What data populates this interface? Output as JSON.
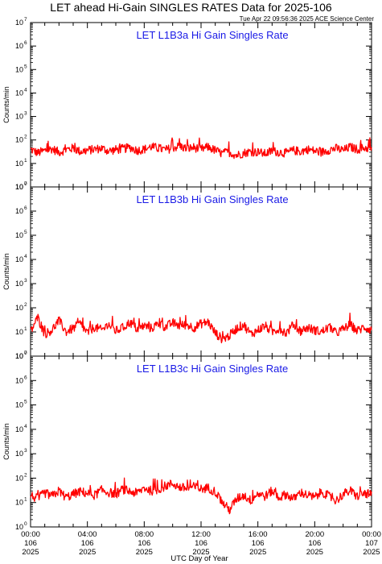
{
  "page": {
    "title": "LET ahead Hi-Gain SINGLES RATES Data for 2025-106",
    "timestamp": "Tue Apr 22 09:56:36 2025 ACE Science Center",
    "x_axis_label": "UTC Day of Year"
  },
  "chart_data": [
    {
      "type": "line",
      "title": "LET L1B3a Hi Gain Singles Rate",
      "ylabel": "Counts/min",
      "yscale": "log",
      "ylim": [
        1,
        10000000
      ],
      "xlim": [
        0,
        24
      ],
      "line_color": "#ff0000",
      "x_tick_labels": [
        [
          "00:00",
          "106",
          "2025"
        ],
        [
          "04:00",
          "106",
          "2025"
        ],
        [
          "08:00",
          "106",
          "2025"
        ],
        [
          "12:00",
          "106",
          "2025"
        ],
        [
          "16:00",
          "106",
          "2025"
        ],
        [
          "20:00",
          "106",
          "2025"
        ],
        [
          "00:00",
          "107",
          "2025"
        ]
      ],
      "series": [
        {
          "x": [
            0,
            0.5,
            1,
            1.5,
            2,
            2.5,
            3,
            3.5,
            4,
            4.5,
            5,
            5.5,
            6,
            6.5,
            7,
            7.5,
            8,
            8.5,
            9,
            9.5,
            10,
            10.5,
            11,
            11.5,
            12,
            12.5,
            13,
            13.5,
            14,
            14.5,
            15,
            15.5,
            16,
            16.5,
            17,
            17.5,
            18,
            18.5,
            19,
            19.5,
            20,
            20.5,
            21,
            21.5,
            22,
            22.5,
            23,
            23.5,
            24
          ],
          "y": [
            40,
            28,
            35,
            42,
            30,
            38,
            45,
            32,
            36,
            40,
            44,
            34,
            38,
            42,
            48,
            36,
            40,
            52,
            44,
            38,
            46,
            55,
            42,
            48,
            40,
            50,
            36,
            26,
            30,
            22,
            28,
            32,
            30,
            26,
            34,
            30,
            28,
            36,
            32,
            40,
            34,
            30,
            38,
            44,
            36,
            50,
            40,
            46,
            44
          ]
        }
      ]
    },
    {
      "type": "line",
      "title": "LET L1B3b Hi Gain Singles Rate",
      "ylabel": "Counts/min",
      "yscale": "log",
      "ylim": [
        1,
        10000000
      ],
      "xlim": [
        0,
        24
      ],
      "line_color": "#ff0000",
      "x_tick_labels": [
        [
          "00:00",
          "106",
          "2025"
        ],
        [
          "04:00",
          "106",
          "2025"
        ],
        [
          "08:00",
          "106",
          "2025"
        ],
        [
          "12:00",
          "106",
          "2025"
        ],
        [
          "16:00",
          "106",
          "2025"
        ],
        [
          "20:00",
          "106",
          "2025"
        ],
        [
          "00:00",
          "107",
          "2025"
        ]
      ],
      "series": [
        {
          "x": [
            0,
            0.5,
            1,
            1.5,
            2,
            2.5,
            3,
            3.5,
            4,
            4.5,
            5,
            5.5,
            6,
            6.5,
            7,
            7.5,
            8,
            8.5,
            9,
            9.5,
            10,
            10.5,
            11,
            11.5,
            12,
            12.5,
            13,
            13.5,
            14,
            14.5,
            15,
            15.5,
            16,
            16.5,
            17,
            17.5,
            18,
            18.5,
            19,
            19.5,
            20,
            20.5,
            21,
            21.5,
            22,
            22.5,
            23,
            23.5,
            24
          ],
          "y": [
            10,
            40,
            8,
            12,
            30,
            10,
            14,
            22,
            9,
            16,
            12,
            20,
            11,
            15,
            25,
            13,
            18,
            14,
            22,
            16,
            24,
            18,
            20,
            15,
            22,
            26,
            9,
            5,
            7,
            14,
            20,
            8,
            12,
            18,
            10,
            14,
            9,
            20,
            11,
            15,
            12,
            10,
            16,
            9,
            13,
            20,
            11,
            16,
            12
          ]
        }
      ]
    },
    {
      "type": "line",
      "title": "LET L1B3c Hi Gain Singles Rate",
      "ylabel": "Counts/min",
      "yscale": "log",
      "ylim": [
        1,
        10000000
      ],
      "xlim": [
        0,
        24
      ],
      "line_color": "#ff0000",
      "x_tick_labels": [
        [
          "00:00",
          "106",
          "2025"
        ],
        [
          "04:00",
          "106",
          "2025"
        ],
        [
          "08:00",
          "106",
          "2025"
        ],
        [
          "12:00",
          "106",
          "2025"
        ],
        [
          "16:00",
          "106",
          "2025"
        ],
        [
          "20:00",
          "106",
          "2025"
        ],
        [
          "00:00",
          "107",
          "2025"
        ]
      ],
      "series": [
        {
          "x": [
            0,
            0.5,
            1,
            1.5,
            2,
            2.5,
            3,
            3.5,
            4,
            4.5,
            5,
            5.5,
            6,
            6.5,
            7,
            7.5,
            8,
            8.5,
            9,
            9.5,
            10,
            10.5,
            11,
            11.5,
            12,
            12.5,
            13,
            13.5,
            14,
            14.5,
            15,
            15.5,
            16,
            16.5,
            17,
            17.5,
            18,
            18.5,
            19,
            19.5,
            20,
            20.5,
            21,
            21.5,
            22,
            22.5,
            23,
            23.5,
            24
          ],
          "y": [
            20,
            14,
            25,
            18,
            30,
            16,
            22,
            28,
            24,
            20,
            32,
            26,
            22,
            35,
            28,
            24,
            40,
            30,
            34,
            48,
            60,
            42,
            38,
            44,
            36,
            40,
            28,
            10,
            5,
            14,
            20,
            12,
            24,
            18,
            30,
            16,
            22,
            14,
            26,
            20,
            16,
            28,
            18,
            12,
            22,
            30,
            18,
            24,
            20
          ]
        }
      ]
    }
  ]
}
